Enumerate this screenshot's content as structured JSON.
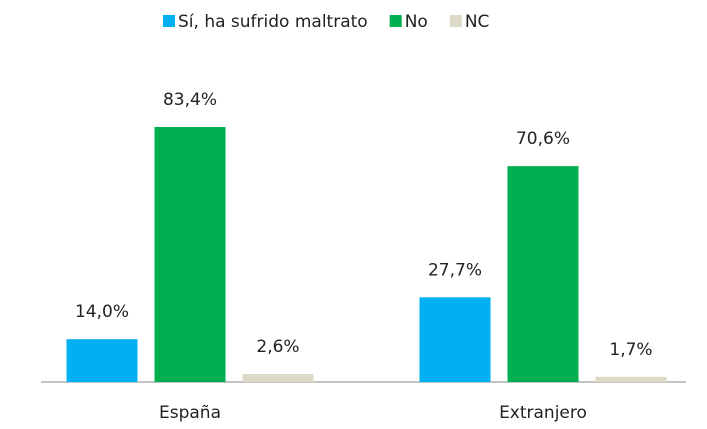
{
  "chart_data": {
    "type": "bar",
    "categories": [
      "España",
      "Extranjero"
    ],
    "series": [
      {
        "name": "Sí, ha sufrido maltrato",
        "color": "#00b0f0",
        "values": [
          14.0,
          27.7
        ],
        "value_labels": [
          "14,0%",
          "27,7%"
        ]
      },
      {
        "name": "No",
        "color": "#00b050",
        "values": [
          83.4,
          70.6
        ],
        "value_labels": [
          "83,4%",
          "70,6%"
        ]
      },
      {
        "name": "NC",
        "color": "#ddd9c4",
        "values": [
          2.6,
          1.7
        ],
        "value_labels": [
          "2,6%",
          "1,7%"
        ]
      }
    ],
    "legend": "top"
  }
}
